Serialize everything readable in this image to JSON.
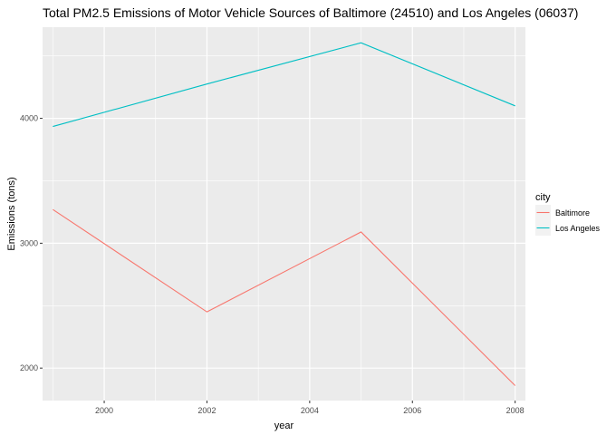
{
  "chart_data": {
    "type": "line",
    "title": "Total PM2.5 Emissions of Motor Vehicle Sources of Baltimore (24510) and Los Angeles (06037)",
    "xlabel": "year",
    "ylabel": "Emissions (tons)",
    "x": [
      1999,
      2002,
      2005,
      2008
    ],
    "xticks": [
      2000,
      2002,
      2004,
      2006,
      2008
    ],
    "xtick_labels": [
      "2000",
      "2002",
      "2004",
      "2006",
      "2008"
    ],
    "yticks": [
      2000,
      3000,
      4000
    ],
    "ytick_labels": [
      "2000",
      "3000",
      "4000"
    ],
    "xlim": [
      1998.8,
      2008.2
    ],
    "ylim": [
      1740,
      4730
    ],
    "grid": true,
    "legend_title": "city",
    "legend_position": "right",
    "series": [
      {
        "name": "Baltimore",
        "color": "#F8766D",
        "values": [
          3270,
          2450,
          3090,
          1860
        ]
      },
      {
        "name": "Los Angeles",
        "color": "#00BFC4",
        "values": [
          3935,
          4275,
          4605,
          4100
        ]
      }
    ]
  }
}
